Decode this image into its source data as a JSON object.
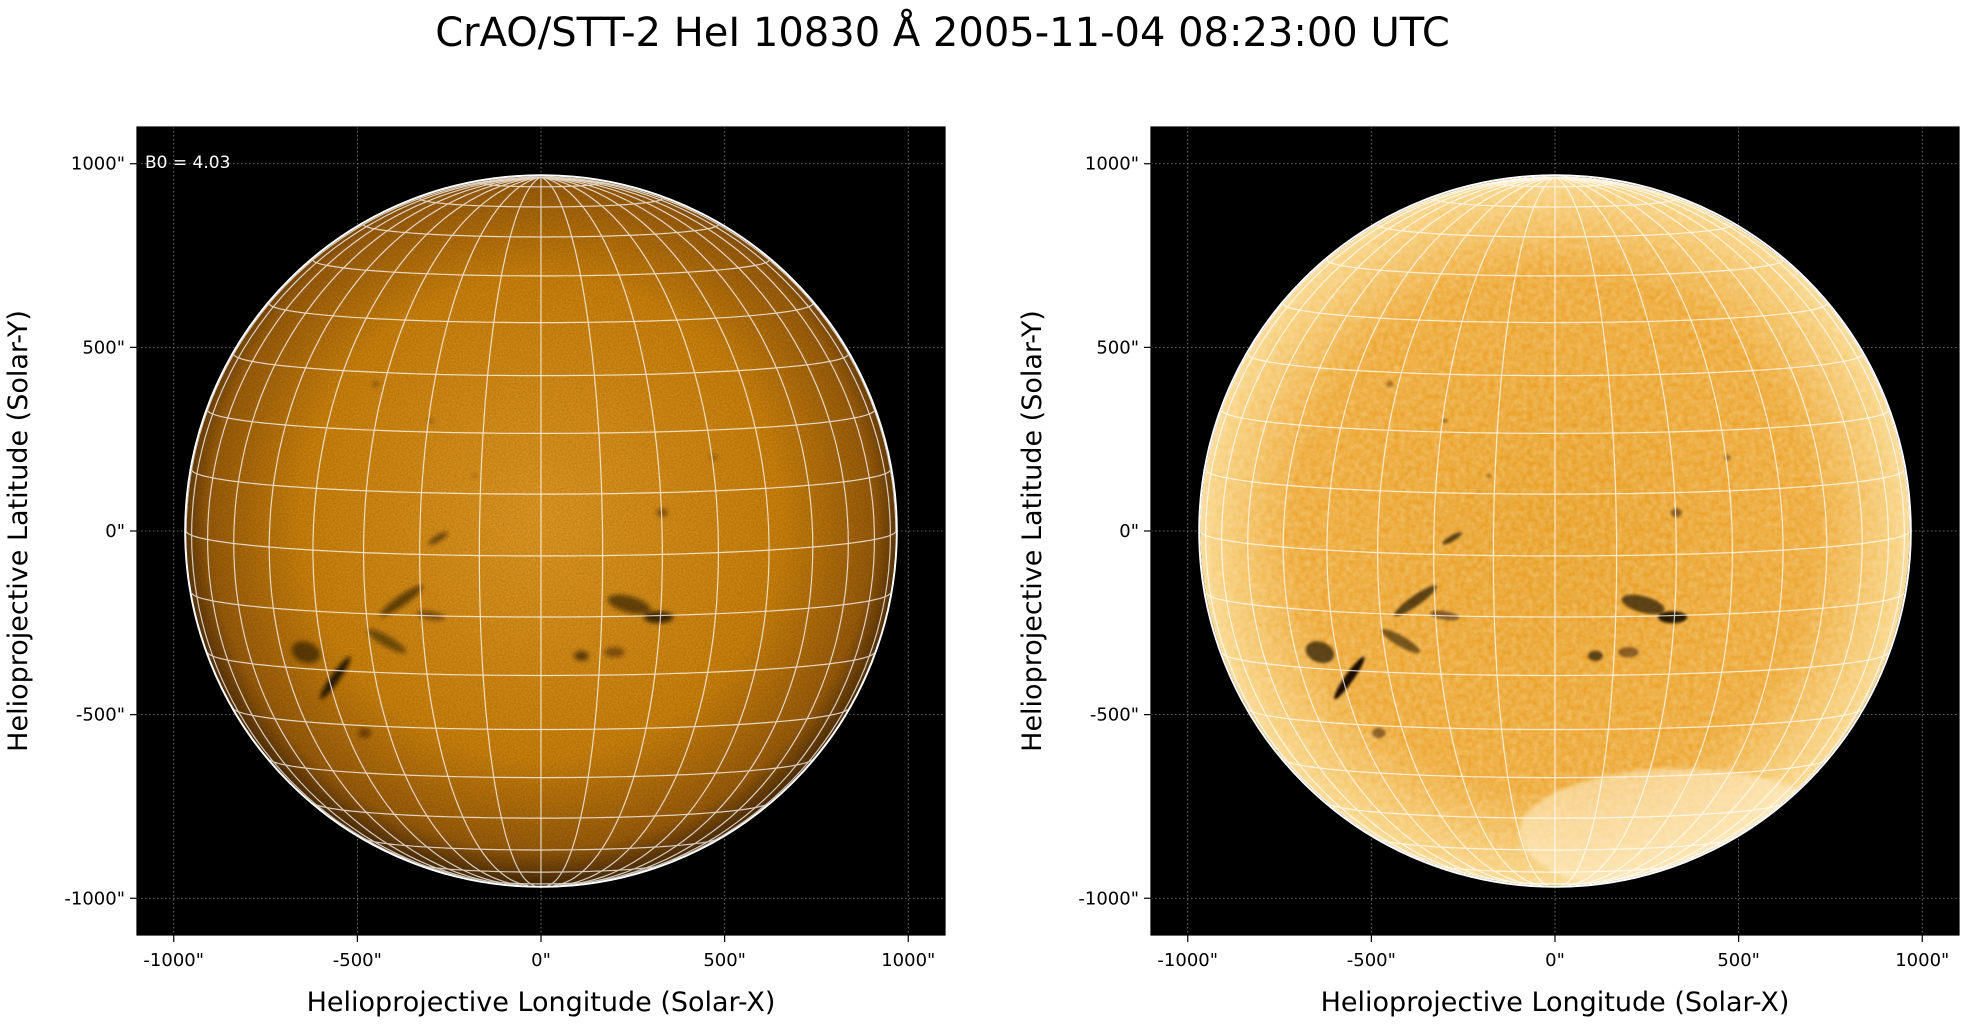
{
  "figure": {
    "title": "CrAO/STT-2 HeI 10830 Å 2005-11-04 08:23:00 UTC"
  },
  "panels": [
    {
      "id": "left",
      "annotation": "B0 = 4.03",
      "xlabel": "Helioprojective Longitude (Solar-X)",
      "ylabel": "Helioprojective Latitude (Solar-Y)",
      "xticks": [
        "-1000\"",
        "-500\"",
        "0\"",
        "500\"",
        "1000\""
      ],
      "yticks": [
        "1000\"",
        "500\"",
        "0\"",
        "-500\"",
        "-1000\""
      ],
      "style": "smooth"
    },
    {
      "id": "right",
      "annotation": "",
      "xlabel": "Helioprojective Longitude (Solar-X)",
      "ylabel": "Helioprojective Latitude (Solar-Y)",
      "xticks": [
        "-1000\"",
        "-500\"",
        "0\"",
        "500\"",
        "1000\""
      ],
      "yticks": [
        "1000\"",
        "500\"",
        "0\"",
        "-500\"",
        "-1000\""
      ],
      "style": "enhanced"
    }
  ],
  "colors": {
    "background": "#000000",
    "disk": "#d98a0c",
    "disk_center": "#f0a423",
    "limb": "#5a3303",
    "grid": "#ffffff"
  }
}
